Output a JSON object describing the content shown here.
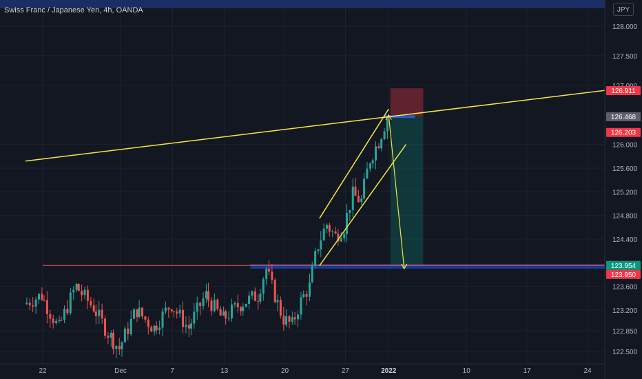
{
  "symbol_title": "Swiss Franc / Japanese Yen, 4h, OANDA",
  "currency_label": "JPY",
  "price_labels": [
    {
      "text": "128.000",
      "value": 128.0
    },
    {
      "text": "127.500",
      "value": 127.5
    },
    {
      "text": "127.000",
      "value": 127.0
    },
    {
      "text": "126.000",
      "value": 126.0
    },
    {
      "text": "125.600",
      "value": 125.6
    },
    {
      "text": "125.200",
      "value": 125.2
    },
    {
      "text": "124.800",
      "value": 124.8
    },
    {
      "text": "124.400",
      "value": 124.4
    },
    {
      "text": "123.600",
      "value": 123.6
    },
    {
      "text": "123.200",
      "value": 123.2
    },
    {
      "text": "122.850",
      "value": 122.85
    },
    {
      "text": "122.500",
      "value": 122.5
    }
  ],
  "price_tags": [
    {
      "text": "126.911",
      "value": 126.911,
      "color": "#f23645"
    },
    {
      "text": "126.468",
      "value": 126.468,
      "color": "#5d606b"
    },
    {
      "text": "126.203",
      "value": 126.203,
      "color": "#f23645"
    },
    {
      "text": "123.954",
      "value": 123.954,
      "color": "#089981"
    },
    {
      "text": "123.950",
      "value": 123.95,
      "color": "#f23645"
    }
  ],
  "time_labels": [
    "22",
    "Dec",
    "7",
    "13",
    "20",
    "27",
    "2022",
    "10",
    "17",
    "24"
  ],
  "colors": {
    "background": "#131722",
    "up": "#26a69a",
    "down": "#ef5350",
    "trendline": "#f5e642",
    "grid": "#1e222d",
    "axis_text": "#b2b5be"
  },
  "chart_data": {
    "type": "candlestick",
    "title": "Swiss Franc / Japanese Yen, 4h, OANDA",
    "currency": "JPY",
    "ylim": [
      122.35,
      128.3
    ],
    "x_ticks": [
      "22",
      "Dec",
      "7",
      "13",
      "20",
      "27",
      "2022",
      "10",
      "17",
      "24"
    ],
    "x_range_dates": [
      "2021-11-20",
      "2022-01-28"
    ],
    "annotations": {
      "horizontal_line_level": 123.955,
      "support_zone": [
        123.9,
        123.98
      ],
      "position_tool": {
        "entry": 126.47,
        "stop": 126.95,
        "target": 123.95
      },
      "long_trendline": [
        {
          "date": "2021-11-20",
          "price": 125.72
        },
        {
          "date": "2022-01-28",
          "price": 126.95
        }
      ],
      "channel_upper": [
        {
          "date": "2021-12-24",
          "price": 124.75
        },
        {
          "date": "2022-01-01",
          "price": 126.6
        }
      ],
      "channel_lower": [
        {
          "date": "2021-12-24",
          "price": 123.95
        },
        {
          "date": "2022-01-03",
          "price": 126.0
        }
      ],
      "projection_arrow": [
        {
          "date": "2022-01-01",
          "price": 126.5
        },
        {
          "date": "2022-01-02",
          "price": 123.9
        }
      ]
    },
    "segments": [
      {
        "start": "2021-11-20",
        "end": "2021-11-22",
        "from": 123.3,
        "to": 123.45
      },
      {
        "start": "2021-11-22",
        "end": "2021-11-24",
        "from": 123.45,
        "to": 122.9
      },
      {
        "start": "2021-11-24",
        "end": "2021-11-26",
        "from": 122.9,
        "to": 123.6
      },
      {
        "start": "2021-11-26",
        "end": "2021-11-28",
        "from": 123.6,
        "to": 123.25
      },
      {
        "start": "2021-11-28",
        "end": "2021-11-30",
        "from": 123.25,
        "to": 122.75
      },
      {
        "start": "2021-11-30",
        "end": "2021-12-01",
        "from": 122.75,
        "to": 122.55
      },
      {
        "start": "2021-12-01",
        "end": "2021-12-03",
        "from": 122.55,
        "to": 123.2
      },
      {
        "start": "2021-12-03",
        "end": "2021-12-05",
        "from": 123.2,
        "to": 122.9
      },
      {
        "start": "2021-12-05",
        "end": "2021-12-07",
        "from": 122.9,
        "to": 123.3
      },
      {
        "start": "2021-12-07",
        "end": "2021-12-09",
        "from": 123.3,
        "to": 122.9
      },
      {
        "start": "2021-12-09",
        "end": "2021-12-11",
        "from": 122.9,
        "to": 123.45
      },
      {
        "start": "2021-12-11",
        "end": "2021-12-13",
        "from": 123.45,
        "to": 123.05
      },
      {
        "start": "2021-12-13",
        "end": "2021-12-15",
        "from": 123.05,
        "to": 123.3
      },
      {
        "start": "2021-12-15",
        "end": "2021-12-17",
        "from": 123.3,
        "to": 123.45
      },
      {
        "start": "2021-12-17",
        "end": "2021-12-18",
        "from": 123.45,
        "to": 123.9
      },
      {
        "start": "2021-12-18",
        "end": "2021-12-19",
        "from": 123.9,
        "to": 123.45
      },
      {
        "start": "2021-12-19",
        "end": "2021-12-20",
        "from": 123.45,
        "to": 123.05
      },
      {
        "start": "2021-12-20",
        "end": "2021-12-21",
        "from": 123.05,
        "to": 122.95
      },
      {
        "start": "2021-12-21",
        "end": "2021-12-22",
        "from": 122.95,
        "to": 123.35
      },
      {
        "start": "2021-12-22",
        "end": "2021-12-23",
        "from": 123.35,
        "to": 123.6
      },
      {
        "start": "2021-12-23",
        "end": "2021-12-24",
        "from": 123.6,
        "to": 124.3
      },
      {
        "start": "2021-12-24",
        "end": "2021-12-25",
        "from": 124.3,
        "to": 124.65
      },
      {
        "start": "2021-12-25",
        "end": "2021-12-26",
        "from": 124.65,
        "to": 124.45
      },
      {
        "start": "2021-12-26",
        "end": "2021-12-27",
        "from": 124.45,
        "to": 124.6
      },
      {
        "start": "2021-12-27",
        "end": "2021-12-28",
        "from": 124.6,
        "to": 125.15
      },
      {
        "start": "2021-12-28",
        "end": "2021-12-29",
        "from": 125.15,
        "to": 125.05
      },
      {
        "start": "2021-12-29",
        "end": "2021-12-30",
        "from": 125.05,
        "to": 125.75
      },
      {
        "start": "2021-12-30",
        "end": "2021-12-31",
        "from": 125.75,
        "to": 126.05
      },
      {
        "start": "2021-12-31",
        "end": "2022-01-01",
        "from": 126.05,
        "to": 126.45
      }
    ]
  }
}
